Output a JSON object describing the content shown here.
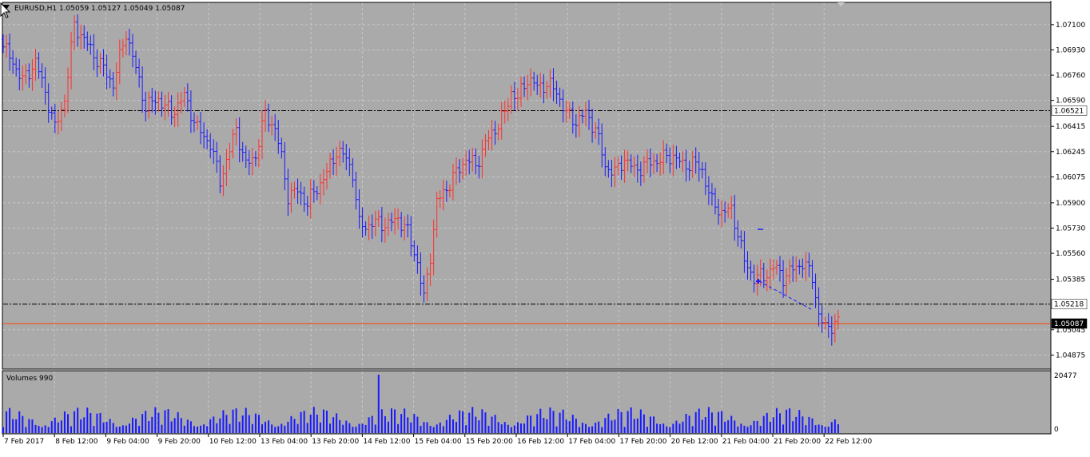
{
  "symbol_header": "EURUSD,H1  1.05059 1.05127 1.05049 1.05087",
  "volumes_header": "Volumes 990",
  "price_ticks": [
    "1.07100",
    "1.06930",
    "1.06760",
    "1.06590",
    "1.06415",
    "1.06245",
    "1.06075",
    "1.05900",
    "1.05730",
    "1.05560",
    "1.05385",
    "1.05045",
    "1.04875"
  ],
  "price_tick_values": [
    1.071,
    1.0693,
    1.0676,
    1.0659,
    1.06415,
    1.06245,
    1.06075,
    1.059,
    1.0573,
    1.0556,
    1.05385,
    1.05045,
    1.04875
  ],
  "volume_ticks": [
    "20477",
    "0"
  ],
  "time_labels": [
    "7 Feb 2017",
    "8 Feb 12:00",
    "9 Feb 04:00",
    "9 Feb 20:00",
    "10 Feb 12:00",
    "13 Feb 04:00",
    "13 Feb 20:00",
    "14 Feb 12:00",
    "15 Feb 04:00",
    "15 Feb 20:00",
    "16 Feb 12:00",
    "17 Feb 04:00",
    "17 Feb 20:00",
    "20 Feb 12:00",
    "21 Feb 04:00",
    "21 Feb 20:00",
    "22 Feb 12:00"
  ],
  "hlines": [
    {
      "price": 1.06521,
      "label": "1.06521",
      "style": "dashdot",
      "color": "#000000"
    },
    {
      "price": 1.05218,
      "label": "1.05218",
      "style": "dashdot",
      "color": "#000000"
    },
    {
      "price": 1.05087,
      "label": "1.05087",
      "style": "solid",
      "color": "#ff4400"
    }
  ],
  "colors": {
    "background": "#aaaaaa",
    "grid": "#c8c8c8",
    "bull": "#ff3030",
    "bear": "#1a1aff",
    "volume": "#1a1aff",
    "current_line": "#ff4400"
  },
  "chart_data": {
    "type": "ohlc",
    "title": "EURUSD,H1",
    "ylim": [
      1.0478,
      1.0725
    ],
    "volume_ylim": [
      0,
      20477
    ],
    "grid": true,
    "anchors": [
      [
        0,
        1.0695
      ],
      [
        3,
        1.0685
      ],
      [
        6,
        1.0672
      ],
      [
        10,
        1.0685
      ],
      [
        13,
        1.0665
      ],
      [
        16,
        1.064
      ],
      [
        19,
        1.066
      ],
      [
        22,
        1.071
      ],
      [
        25,
        1.07
      ],
      [
        28,
        1.069
      ],
      [
        31,
        1.068
      ],
      [
        34,
        1.067
      ],
      [
        38,
        1.0705
      ],
      [
        41,
        1.068
      ],
      [
        44,
        1.0655
      ],
      [
        48,
        1.066
      ],
      [
        52,
        1.065
      ],
      [
        56,
        1.0662
      ],
      [
        60,
        1.064
      ],
      [
        64,
        1.063
      ],
      [
        67,
        1.0605
      ],
      [
        70,
        1.0625
      ],
      [
        72,
        1.064
      ],
      [
        75,
        1.0615
      ],
      [
        78,
        1.0622
      ],
      [
        81,
        1.065
      ],
      [
        84,
        1.064
      ],
      [
        86,
        1.062
      ],
      [
        88,
        1.0595
      ],
      [
        91,
        1.0598
      ],
      [
        94,
        1.059
      ],
      [
        97,
        1.06
      ],
      [
        100,
        1.061
      ],
      [
        103,
        1.0625
      ],
      [
        106,
        1.062
      ],
      [
        108,
        1.061
      ],
      [
        110,
        1.0575
      ],
      [
        113,
        1.0575
      ],
      [
        116,
        1.0577
      ],
      [
        119,
        1.0575
      ],
      [
        122,
        1.058
      ],
      [
        125,
        1.057
      ],
      [
        128,
        1.055
      ],
      [
        130,
        1.0525
      ],
      [
        132,
        1.0555
      ],
      [
        134,
        1.059
      ],
      [
        137,
        1.06
      ],
      [
        140,
        1.061
      ],
      [
        143,
        1.062
      ],
      [
        146,
        1.0615
      ],
      [
        149,
        1.063
      ],
      [
        152,
        1.064
      ],
      [
        155,
        1.065
      ],
      [
        157,
        1.0665
      ],
      [
        159,
        1.066
      ],
      [
        162,
        1.0674
      ],
      [
        165,
        1.0668
      ],
      [
        168,
        1.067
      ],
      [
        171,
        1.0665
      ],
      [
        174,
        1.065
      ],
      [
        177,
        1.0645
      ],
      [
        180,
        1.065
      ],
      [
        183,
        1.064
      ],
      [
        186,
        1.0615
      ],
      [
        189,
        1.061
      ],
      [
        192,
        1.062
      ],
      [
        195,
        1.0612
      ],
      [
        198,
        1.0615
      ],
      [
        201,
        1.0618
      ],
      [
        204,
        1.062
      ],
      [
        207,
        1.0622
      ],
      [
        210,
        1.0615
      ],
      [
        213,
        1.0617
      ],
      [
        216,
        1.0612
      ],
      [
        219,
        1.059
      ],
      [
        222,
        1.0584
      ],
      [
        225,
        1.0585
      ],
      [
        227,
        1.057
      ],
      [
        229,
        1.055
      ],
      [
        232,
        1.054
      ],
      [
        235,
        1.054
      ],
      [
        238,
        1.0547
      ],
      [
        241,
        1.054
      ],
      [
        244,
        1.0545
      ],
      [
        247,
        1.055
      ],
      [
        250,
        1.054
      ],
      [
        252,
        1.0515
      ],
      [
        254,
        1.0505
      ],
      [
        256,
        1.0508
      ],
      [
        258,
        1.051
      ]
    ]
  }
}
